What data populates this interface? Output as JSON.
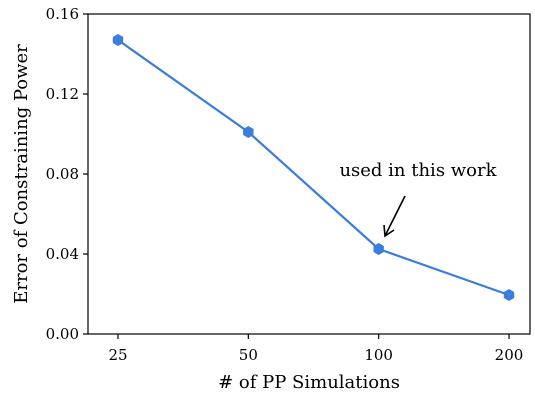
{
  "chart_data": {
    "type": "line",
    "x_scale": "log",
    "categories": [
      "25",
      "50",
      "100",
      "200"
    ],
    "x": [
      25,
      50,
      100,
      200
    ],
    "series": [
      {
        "values": [
          0.147,
          0.101,
          0.0425,
          0.0195
        ],
        "color": "#3b7ddd",
        "marker": "hexagon"
      }
    ],
    "xlabel": "# of PP Simulations",
    "ylabel": "Error of Constraining Power",
    "ylim": [
      0,
      0.16
    ],
    "yticks": [
      "0.00",
      "0.04",
      "0.08",
      "0.12",
      "0.16"
    ],
    "grid": false,
    "annotation": {
      "text": "used in this work",
      "points_to_x": 100
    }
  }
}
